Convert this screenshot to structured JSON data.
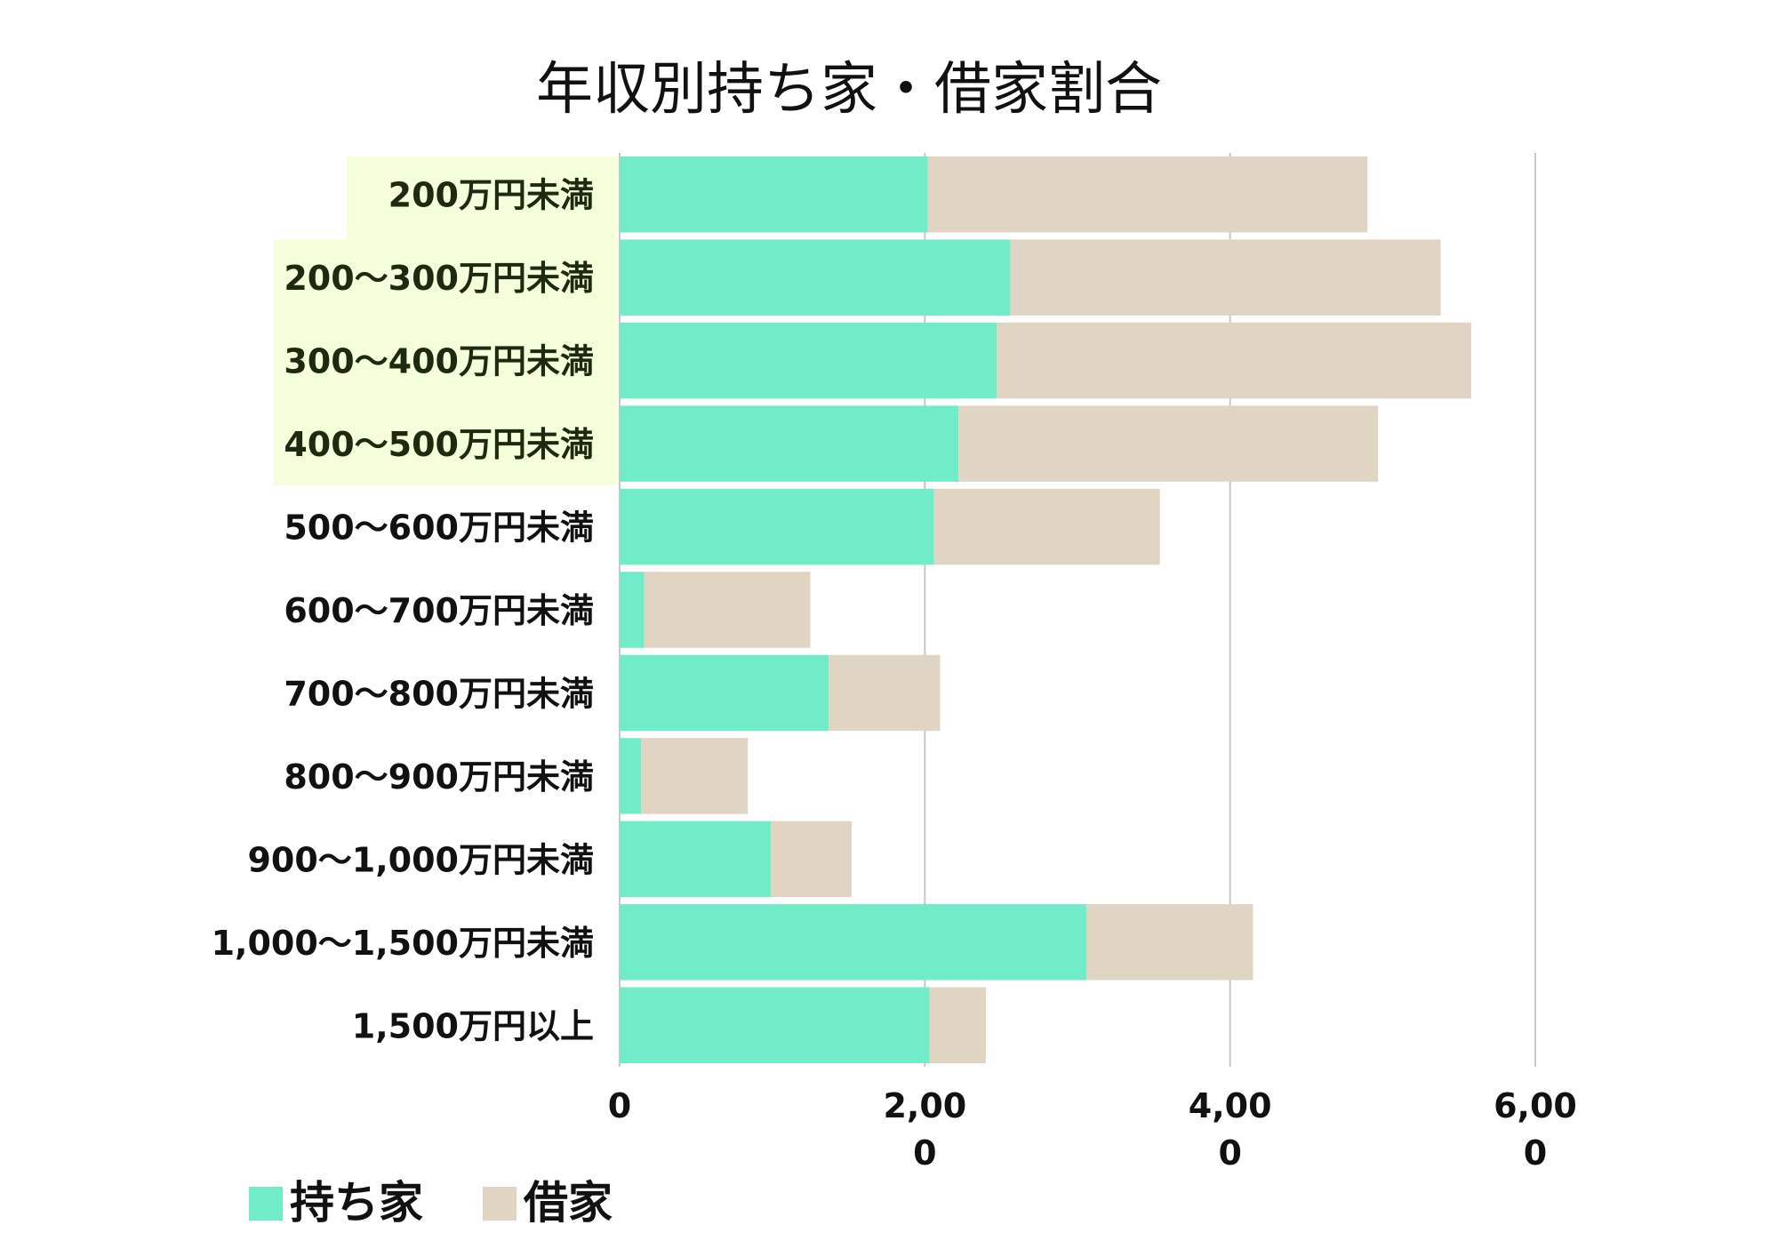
{
  "chart_data": {
    "type": "bar",
    "orientation": "horizontal",
    "stacked": true,
    "title": "年収別持ち家・借家割合",
    "categories": [
      "200万円未満",
      "200〜300万円未満",
      "300〜400万円未満",
      "400〜500万円未満",
      "500〜600万円未満",
      "600〜700万円未満",
      "700〜800万円未満",
      "800〜900万円未満",
      "900〜1,000万円未満",
      "1,000〜1,500万円未満",
      "1,500万円以上"
    ],
    "highlighted_categories": [
      0,
      1,
      2,
      3
    ],
    "series": [
      {
        "name": "持ち家",
        "color": "#70ecc8",
        "values": [
          2020,
          2560,
          2470,
          2220,
          2060,
          160,
          1370,
          140,
          990,
          3060,
          2030
        ]
      },
      {
        "name": "借家",
        "color": "#e0d5c2",
        "values": [
          2880,
          2820,
          3110,
          2750,
          1480,
          1090,
          730,
          700,
          530,
          1090,
          370
        ]
      }
    ],
    "x_ticks": [
      {
        "value": 0,
        "line1": "0",
        "line2": ""
      },
      {
        "value": 2000,
        "line1": "2,00",
        "line2": "0"
      },
      {
        "value": 4000,
        "line1": "4,00",
        "line2": "0"
      },
      {
        "value": 6000,
        "line1": "6,00",
        "line2": "0"
      }
    ],
    "xlim": [
      0,
      6000
    ],
    "grid": true,
    "legend_position": "bottom-left",
    "colors": {
      "highlight": "#f6ffdc",
      "grid": "#c8c8c8",
      "text": "#111111"
    }
  }
}
